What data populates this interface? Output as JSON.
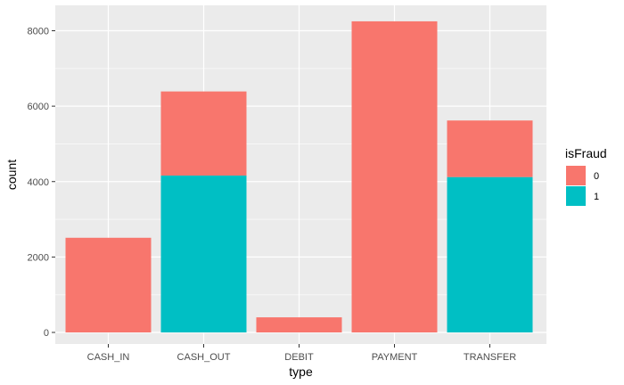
{
  "chart_data": {
    "type": "bar",
    "stacked": true,
    "categories": [
      "CASH_IN",
      "CASH_OUT",
      "DEBIT",
      "PAYMENT",
      "TRANSFER"
    ],
    "series": [
      {
        "name": "0",
        "color": "#F8766D",
        "values": [
          2510,
          2230,
          400,
          8250,
          1500
        ]
      },
      {
        "name": "1",
        "color": "#00BFC4",
        "values": [
          0,
          4160,
          0,
          0,
          4120
        ]
      }
    ],
    "xlabel": "type",
    "ylabel": "count",
    "ylim": [
      0,
      8600
    ],
    "yticks": [
      0,
      2000,
      4000,
      6000,
      8000
    ],
    "grid": true,
    "legend": {
      "title": "isFraud",
      "position": "right"
    }
  }
}
